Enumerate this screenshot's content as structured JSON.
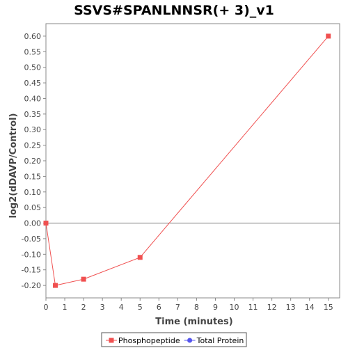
{
  "chart_data": {
    "type": "line",
    "title": "SSVS#SPANLNNSR(+ 3)_v1",
    "xlabel": "Time (minutes)",
    "ylabel": "log2(dDAVP/Control)",
    "xlim": [
      0,
      15.6
    ],
    "ylim": [
      -0.24,
      0.64
    ],
    "x_ticks": [
      0,
      1,
      2,
      3,
      4,
      5,
      6,
      7,
      8,
      9,
      10,
      11,
      12,
      13,
      14,
      15
    ],
    "y_ticks": [
      0.6,
      0.55,
      0.5,
      0.45,
      0.4,
      0.35,
      0.3,
      0.25,
      0.2,
      0.15,
      0.1,
      0.05,
      0.0,
      -0.05,
      -0.1,
      -0.15,
      -0.2
    ],
    "y_tick_labels": [
      "0.60",
      "0.55",
      "0.50",
      "0.45",
      "0.40",
      "0.35",
      "0.30",
      "0.25",
      "0.20",
      "0.15",
      "0.10",
      "0.05",
      "0.00",
      "-0.05",
      "-0.10",
      "-0.15",
      "-0.20"
    ],
    "zero_line": true,
    "grid": false,
    "legend_position": "bottom",
    "series": [
      {
        "name": "Phosphopeptide",
        "color": "#f05050",
        "marker": "square",
        "x": [
          0,
          0.5,
          2,
          5,
          15
        ],
        "y": [
          0.0,
          -0.2,
          -0.18,
          -0.11,
          0.6
        ]
      },
      {
        "name": "Total Protein",
        "color": "#5555ee",
        "marker": "circle",
        "x": [],
        "y": []
      }
    ]
  }
}
